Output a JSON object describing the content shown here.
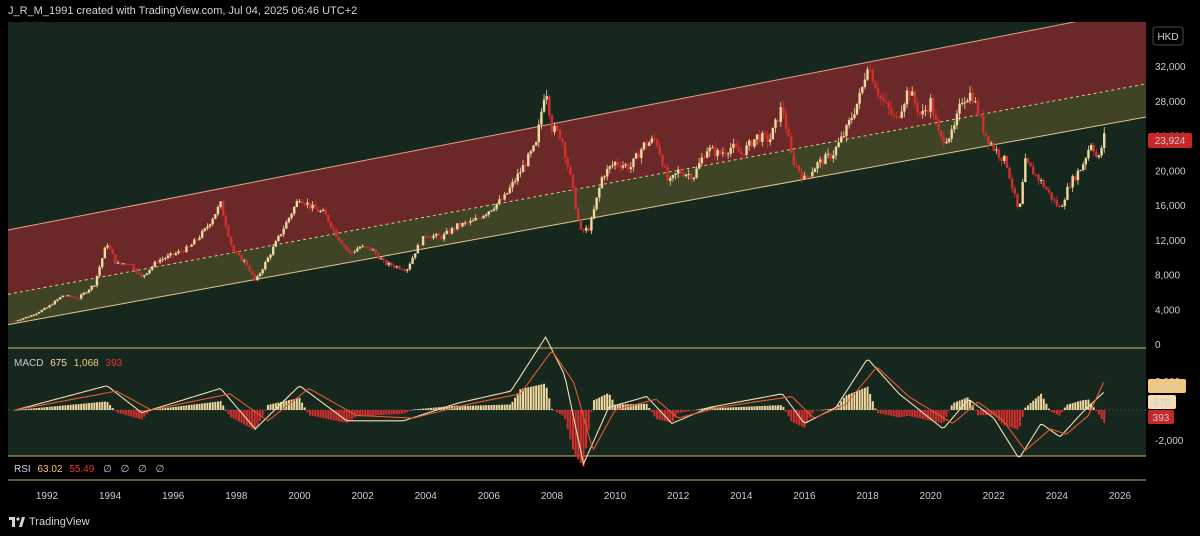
{
  "header": {
    "caption": "J_R_M_1991 created with TradingView.com, Jul 04, 2025 06:46 UTC+2"
  },
  "footer": {
    "brand": "TradingView",
    "logo_icon": "tradingview-logo-icon"
  },
  "price_panel": {
    "currency": "HKD",
    "last_price": "23,924",
    "last_price_color": "#c62828",
    "y_ticks": [
      "32,000",
      "28,000",
      "24,000",
      "20,000",
      "16,000",
      "12,000",
      "8,000",
      "4,000",
      "0"
    ]
  },
  "macd_panel": {
    "label": "MACD",
    "macd_value": "675",
    "signal_value": "1,068",
    "hist_value": "393",
    "y_ticks": [
      "2,000",
      "-2,000"
    ],
    "badges": {
      "signal": "1,068",
      "macd": "675",
      "hist": "393"
    }
  },
  "rsi_panel": {
    "label": "RSI",
    "rsi_value": "63.02",
    "ma_value": "55.49",
    "empty_values": [
      "∅",
      "∅",
      "∅",
      "∅"
    ]
  },
  "x_axis": {
    "labels": [
      "1992",
      "1994",
      "1996",
      "1998",
      "2000",
      "2002",
      "2004",
      "2006",
      "2008",
      "2010",
      "2012",
      "2014",
      "2016",
      "2018",
      "2020",
      "2022",
      "2024",
      "2026"
    ]
  },
  "colors": {
    "background": "#16271e",
    "up_candle": "#f0d9a0",
    "down_candle": "#d32f2f",
    "channel_upper_fill": "#6b2828",
    "channel_lower_fill": "#3f4427",
    "channel_line": "#e6c58a",
    "macd_line": "#f5deb3",
    "signal_line": "#e55a32"
  },
  "chart_data": {
    "type": "candlestick",
    "x_range": [
      1991,
      2026.5
    ],
    "y_range": [
      0,
      35000
    ],
    "channel": {
      "lower_start": [
        1991.0,
        2500
      ],
      "lower_end": [
        2025.7,
        25500
      ],
      "mid_start": [
        1991.0,
        6000
      ],
      "mid_end": [
        2025.7,
        29300
      ],
      "upper_start": [
        1991.0,
        13400
      ],
      "upper_end": [
        2025.7,
        38000
      ]
    },
    "close_series": [
      [
        1991.0,
        2800
      ],
      [
        1991.5,
        3400
      ],
      [
        1992.0,
        4300
      ],
      [
        1992.5,
        5700
      ],
      [
        1993.0,
        5400
      ],
      [
        1993.5,
        7000
      ],
      [
        1993.9,
        11800
      ],
      [
        1994.2,
        9300
      ],
      [
        1994.6,
        9500
      ],
      [
        1995.0,
        7800
      ],
      [
        1995.5,
        9700
      ],
      [
        1996.0,
        10400
      ],
      [
        1996.5,
        11200
      ],
      [
        1997.0,
        13200
      ],
      [
        1997.5,
        16200
      ],
      [
        1997.9,
        10700
      ],
      [
        1998.3,
        9500
      ],
      [
        1998.6,
        7300
      ],
      [
        1999.0,
        10000
      ],
      [
        1999.5,
        13500
      ],
      [
        2000.0,
        17000
      ],
      [
        2000.4,
        15800
      ],
      [
        2000.8,
        15100
      ],
      [
        2001.2,
        12500
      ],
      [
        2001.6,
        10500
      ],
      [
        2001.9,
        11300
      ],
      [
        2002.3,
        11000
      ],
      [
        2002.7,
        9400
      ],
      [
        2003.1,
        9000
      ],
      [
        2003.4,
        8700
      ],
      [
        2003.7,
        11000
      ],
      [
        2004.0,
        12700
      ],
      [
        2004.5,
        12400
      ],
      [
        2005.0,
        13700
      ],
      [
        2005.5,
        14200
      ],
      [
        2006.0,
        15500
      ],
      [
        2006.5,
        17000
      ],
      [
        2007.0,
        20000
      ],
      [
        2007.5,
        23000
      ],
      [
        2007.8,
        30000
      ],
      [
        2008.0,
        25000
      ],
      [
        2008.3,
        24000
      ],
      [
        2008.6,
        19000
      ],
      [
        2008.9,
        13000
      ],
      [
        2009.2,
        13500
      ],
      [
        2009.6,
        19500
      ],
      [
        2010.0,
        21000
      ],
      [
        2010.5,
        20500
      ],
      [
        2010.9,
        23000
      ],
      [
        2011.3,
        23700
      ],
      [
        2011.7,
        18500
      ],
      [
        2012.0,
        20000
      ],
      [
        2012.5,
        19500
      ],
      [
        2012.9,
        22600
      ],
      [
        2013.3,
        22000
      ],
      [
        2013.7,
        22800
      ],
      [
        2014.0,
        22000
      ],
      [
        2014.5,
        24000
      ],
      [
        2014.9,
        23600
      ],
      [
        2015.3,
        27500
      ],
      [
        2015.6,
        21500
      ],
      [
        2016.0,
        19100
      ],
      [
        2016.4,
        20800
      ],
      [
        2016.9,
        22000
      ],
      [
        2017.3,
        24500
      ],
      [
        2017.8,
        29000
      ],
      [
        2018.0,
        32500
      ],
      [
        2018.4,
        28500
      ],
      [
        2018.9,
        25800
      ],
      [
        2019.3,
        29500
      ],
      [
        2019.7,
        26300
      ],
      [
        2020.0,
        28000
      ],
      [
        2020.3,
        23600
      ],
      [
        2020.7,
        24300
      ],
      [
        2021.0,
        28300
      ],
      [
        2021.3,
        29000
      ],
      [
        2021.7,
        24500
      ],
      [
        2022.0,
        22700
      ],
      [
        2022.4,
        21000
      ],
      [
        2022.8,
        15000
      ],
      [
        2023.0,
        21000
      ],
      [
        2023.5,
        18800
      ],
      [
        2023.9,
        16600
      ],
      [
        2024.1,
        15700
      ],
      [
        2024.4,
        18500
      ],
      [
        2024.8,
        20600
      ],
      [
        2025.1,
        23500
      ],
      [
        2025.3,
        21000
      ],
      [
        2025.5,
        24000
      ]
    ],
    "macd": {
      "zero": 0,
      "y_range": [
        -2700,
        2700
      ],
      "macd_line": [
        [
          1991,
          0
        ],
        [
          1993.9,
          900
        ],
        [
          1995,
          -100
        ],
        [
          1997.5,
          800
        ],
        [
          1998.6,
          -700
        ],
        [
          2000,
          900
        ],
        [
          2001.5,
          -400
        ],
        [
          2003.3,
          -400
        ],
        [
          2005,
          250
        ],
        [
          2006.7,
          700
        ],
        [
          2007.8,
          2700
        ],
        [
          2008.4,
          1300
        ],
        [
          2009,
          -2000
        ],
        [
          2009.8,
          100
        ],
        [
          2011,
          500
        ],
        [
          2011.8,
          -500
        ],
        [
          2013,
          100
        ],
        [
          2015.3,
          600
        ],
        [
          2016,
          -500
        ],
        [
          2017,
          100
        ],
        [
          2018,
          1900
        ],
        [
          2019,
          600
        ],
        [
          2020.4,
          -700
        ],
        [
          2021.2,
          400
        ],
        [
          2022,
          -300
        ],
        [
          2022.8,
          -1800
        ],
        [
          2023.5,
          -500
        ],
        [
          2024.1,
          -1000
        ],
        [
          2024.8,
          -100
        ],
        [
          2025.5,
          675
        ]
      ],
      "signal_line": [
        [
          1991,
          0
        ],
        [
          1994.2,
          700
        ],
        [
          1995.3,
          0
        ],
        [
          1997.8,
          600
        ],
        [
          1999,
          -400
        ],
        [
          2000.3,
          800
        ],
        [
          2001.8,
          -200
        ],
        [
          2003.6,
          -300
        ],
        [
          2005.3,
          200
        ],
        [
          2007,
          600
        ],
        [
          2008,
          2200
        ],
        [
          2008.7,
          1000
        ],
        [
          2009.3,
          -1500
        ],
        [
          2010,
          0
        ],
        [
          2011.3,
          400
        ],
        [
          2012,
          -300
        ],
        [
          2013.3,
          100
        ],
        [
          2015.6,
          500
        ],
        [
          2016.3,
          -300
        ],
        [
          2017.3,
          200
        ],
        [
          2018.3,
          1600
        ],
        [
          2019.3,
          500
        ],
        [
          2020.7,
          -500
        ],
        [
          2021.5,
          300
        ],
        [
          2022.3,
          -400
        ],
        [
          2023,
          -1500
        ],
        [
          2023.8,
          -700
        ],
        [
          2024.3,
          -900
        ],
        [
          2025,
          -200
        ],
        [
          2025.5,
          1068
        ]
      ]
    },
    "rsi": {
      "value": 63.02,
      "ma": 55.49
    }
  }
}
